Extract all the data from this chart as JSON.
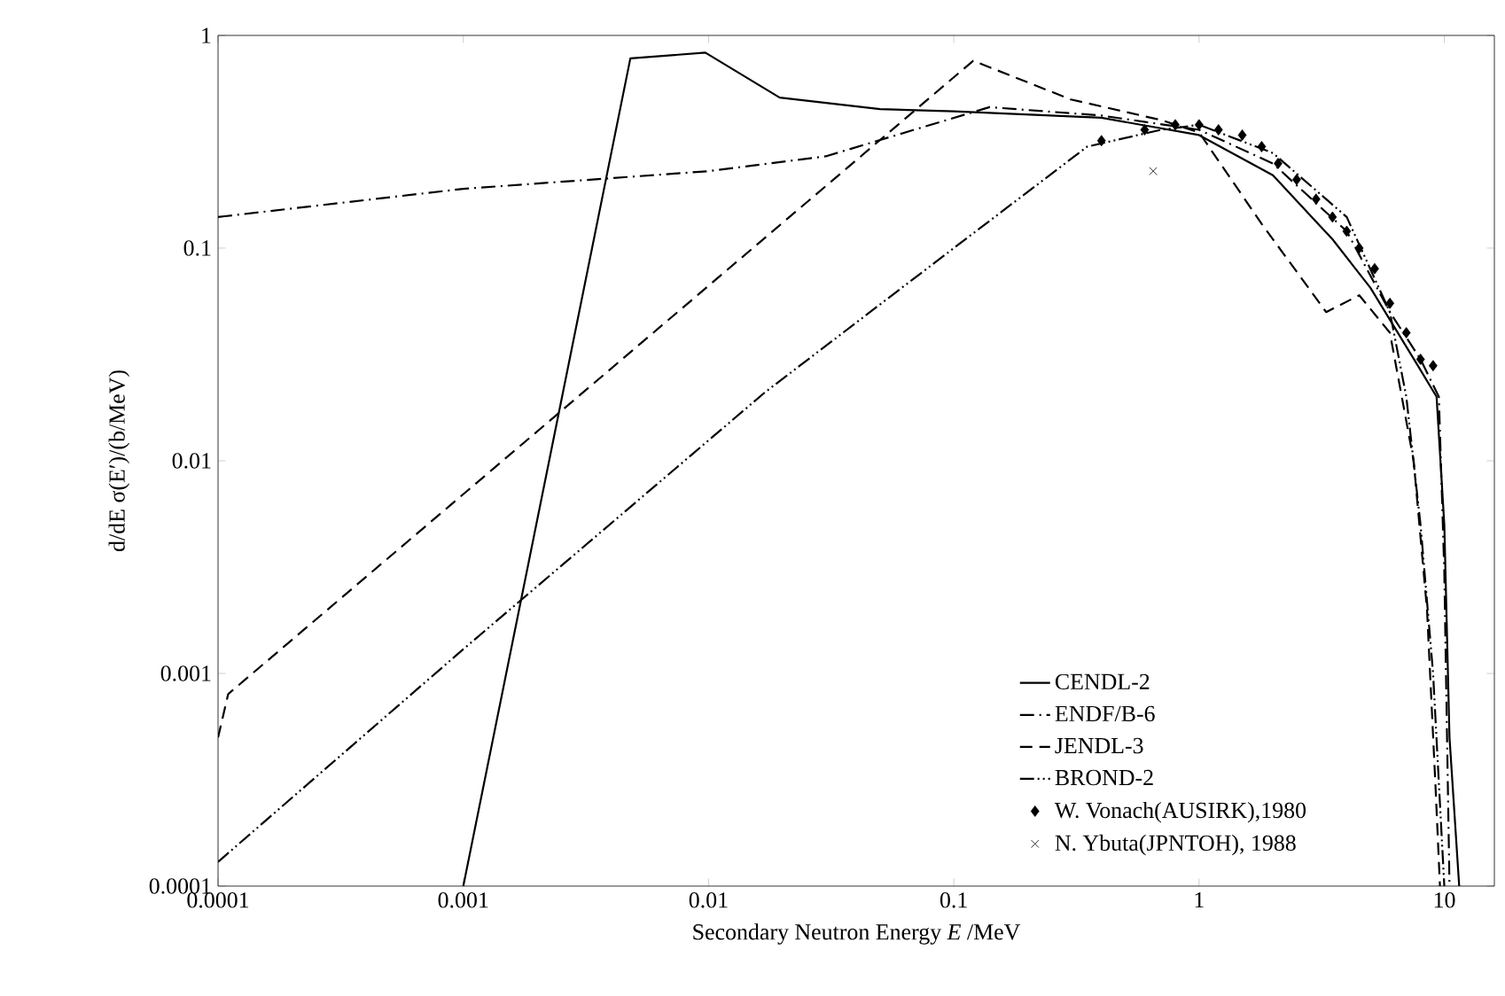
{
  "chart_data": {
    "type": "line",
    "xlabel": "Secondary Neutron Energy *E* /MeV",
    "ylabel": "d/dE σ(E′)/(b/MeV)",
    "log": "xy",
    "xlim": [
      0.0001,
      16
    ],
    "ylim": [
      0.0001,
      1
    ],
    "xticks": [
      0.0001,
      0.001,
      0.01,
      0.1,
      1,
      10
    ],
    "yticks": [
      0.0001,
      0.001,
      0.01,
      0.1,
      1
    ],
    "legend": "bottom right",
    "grid": false,
    "series": [
      {
        "name": "CENDL-2",
        "color": "#000000",
        "line_style": "solid",
        "x": [
          0.001,
          0.0048,
          0.0097,
          0.0195,
          0.05,
          0.1,
          0.4,
          1,
          2,
          3.5,
          5,
          7.8,
          9.3,
          10,
          10.5,
          11.5
        ],
        "values": [
          0.0001,
          0.78,
          0.83,
          0.51,
          0.45,
          0.44,
          0.41,
          0.34,
          0.22,
          0.11,
          0.065,
          0.028,
          0.02,
          0.005,
          0.0005,
          0.0001
        ]
      },
      {
        "name": "ENDF/B-6",
        "color": "#000000",
        "line_style": "dashdot",
        "x": [
          0.0001,
          0.001,
          0.01,
          0.03,
          0.14,
          0.4,
          1,
          2,
          4,
          6,
          8,
          9.5,
          10,
          10.5
        ],
        "values": [
          0.14,
          0.19,
          0.23,
          0.27,
          0.46,
          0.42,
          0.36,
          0.25,
          0.12,
          0.05,
          0.03,
          0.02,
          0.003,
          0.0001
        ]
      },
      {
        "name": "JENDL-3",
        "color": "#000000",
        "line_style": "dashed",
        "x": [
          0.0001,
          0.00011,
          0.12,
          0.3,
          0.7,
          1,
          1.8,
          3.3,
          4.5,
          6,
          7.5,
          8.5,
          9.2,
          9.6
        ],
        "values": [
          0.0005,
          0.0008,
          0.76,
          0.5,
          0.4,
          0.35,
          0.13,
          0.05,
          0.06,
          0.04,
          0.01,
          0.002,
          0.0003,
          0.0001
        ]
      },
      {
        "name": "BROND-2",
        "color": "#000000",
        "line_style": "dashdotdot",
        "x": [
          0.0001,
          0.001,
          0.017,
          0.1,
          0.35,
          0.7,
          1,
          2,
          4,
          6,
          7,
          8,
          9,
          10
        ],
        "values": [
          0.00013,
          0.0013,
          0.021,
          0.1,
          0.3,
          0.36,
          0.38,
          0.28,
          0.14,
          0.05,
          0.02,
          0.005,
          0.001,
          0.0001
        ]
      },
      {
        "name": "W. Vonach(AUSIRK),1980",
        "color": "#000000",
        "type": "scatter",
        "marker": "diamond",
        "x": [
          0.4,
          0.6,
          0.8,
          1,
          1.2,
          1.5,
          1.8,
          2.1,
          2.5,
          3,
          3.5,
          4,
          4.5,
          5.2,
          6,
          7,
          8,
          9
        ],
        "values": [
          0.32,
          0.36,
          0.38,
          0.38,
          0.36,
          0.34,
          0.3,
          0.25,
          0.21,
          0.17,
          0.14,
          0.12,
          0.1,
          0.08,
          0.055,
          0.04,
          0.03,
          0.028
        ]
      },
      {
        "name": "N. Ybuta(JPNTOH), 1988",
        "color": "#000000",
        "type": "scatter",
        "marker": "cross",
        "x": [
          0.65
        ],
        "values": [
          0.23
        ]
      }
    ]
  }
}
